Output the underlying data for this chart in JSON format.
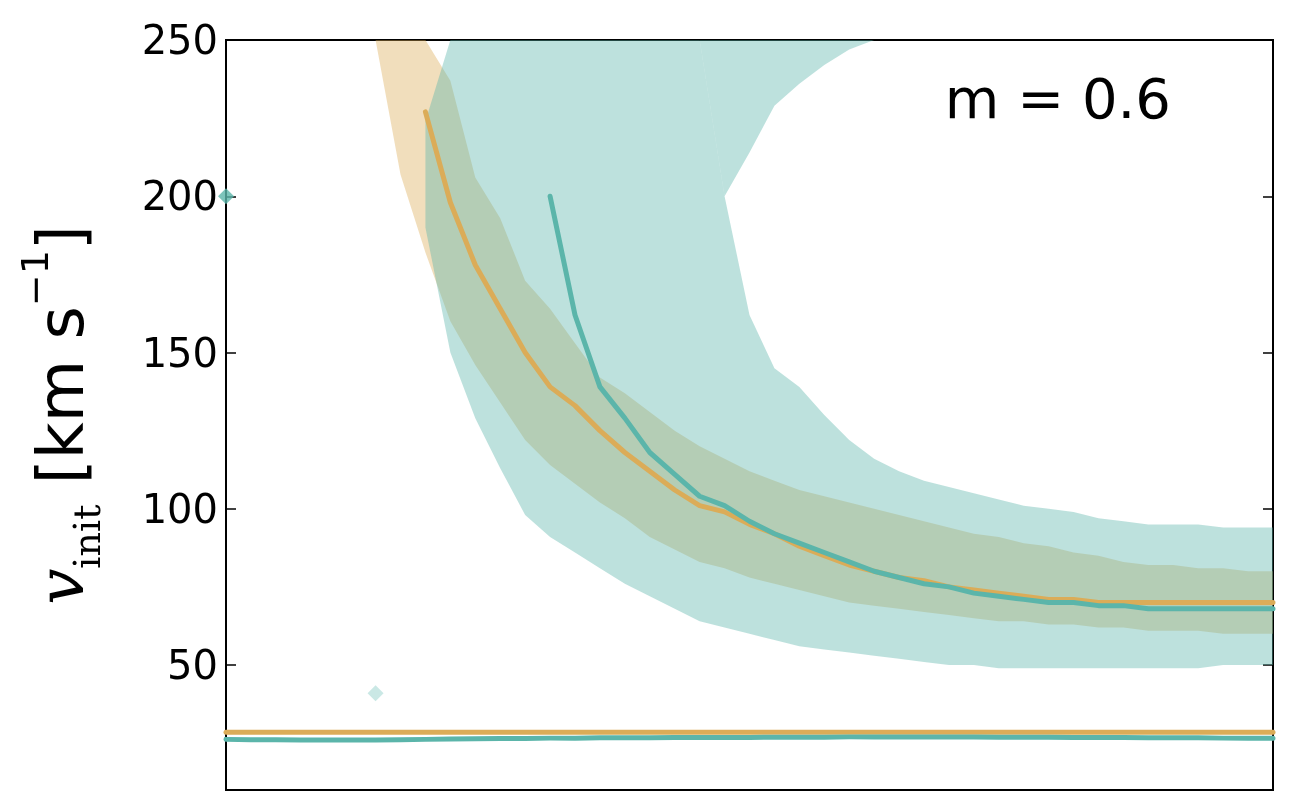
{
  "chart_data": {
    "type": "line",
    "ylabel": "v$_{init}$ [km s$^{−1}$]",
    "annotations": [
      "m = 0.6"
    ],
    "categories": [
      null,
      null,
      null,
      null,
      null,
      null,
      null,
      null,
      null,
      null,
      null,
      null,
      null,
      null,
      null,
      null,
      null,
      null,
      null,
      null,
      null,
      null,
      null,
      null,
      null,
      null,
      null,
      null,
      null,
      null,
      null,
      null,
      null,
      null,
      null,
      null,
      null,
      null,
      null,
      null,
      null,
      null,
      null
    ],
    "ylim": [
      10,
      250
    ],
    "yticks": [
      50,
      100,
      150,
      200,
      250
    ],
    "tick_labels": "y",
    "grid": false,
    "marker": "none",
    "line_style": "solid",
    "series": [
      {
        "color": "#dbac58",
        "values": [
          null,
          null,
          null,
          null,
          null,
          null,
          null,
          null,
          227,
          198,
          178,
          164,
          150,
          139,
          133,
          125,
          118,
          112,
          106,
          101,
          99,
          95,
          92,
          88,
          85,
          82,
          80,
          78,
          77,
          75,
          74,
          73,
          72,
          71,
          71,
          70,
          70,
          70,
          70,
          70,
          70,
          70,
          70
        ],
        "lower": [
          null,
          null,
          null,
          null,
          null,
          null,
          250,
          207,
          182,
          160,
          146,
          134,
          122,
          114,
          108,
          102,
          97,
          91,
          87,
          83,
          81,
          78,
          76,
          74,
          72,
          70,
          69,
          68,
          67,
          66,
          65,
          64,
          64,
          63,
          63,
          62,
          62,
          61,
          61,
          61,
          60,
          60,
          60
        ],
        "upper": [
          null,
          null,
          null,
          null,
          null,
          null,
          250,
          250,
          250,
          237,
          206,
          193,
          173,
          164,
          153,
          142,
          137,
          131,
          125,
          120,
          116,
          112,
          109,
          106,
          104,
          102,
          100,
          98,
          96,
          94,
          92,
          91,
          89,
          88,
          86,
          85,
          83,
          82,
          82,
          81,
          81,
          80,
          80
        ]
      },
      {
        "color": "#5bb5aa",
        "values": [
          null,
          null,
          null,
          null,
          null,
          null,
          null,
          null,
          null,
          null,
          null,
          null,
          null,
          200,
          162,
          139,
          129,
          118,
          111,
          104,
          101,
          96,
          92,
          89,
          86,
          83,
          80,
          78,
          76,
          75,
          73,
          72,
          71,
          70,
          70,
          69,
          69,
          68,
          68,
          68,
          68,
          68,
          68
        ],
        "lower": [
          null,
          null,
          null,
          null,
          null,
          null,
          null,
          null,
          190,
          150,
          129,
          113,
          98,
          91,
          86,
          81,
          76,
          72,
          68,
          64,
          62,
          60,
          58,
          56,
          55,
          54,
          53,
          52,
          51,
          50,
          50,
          49,
          49,
          49,
          49,
          49,
          49,
          49,
          49,
          49,
          50,
          50,
          50
        ],
        "upper": [
          null,
          null,
          null,
          null,
          null,
          null,
          null,
          null,
          224,
          250,
          250,
          250,
          250,
          250,
          250,
          250,
          250,
          250,
          250,
          250,
          200,
          162,
          145,
          139,
          130,
          122,
          116,
          112,
          109,
          107,
          105,
          103,
          101,
          100,
          99,
          97,
          96,
          95,
          95,
          95,
          94,
          94,
          94
        ]
      },
      {
        "color": "#5bb5aa",
        "values": [
          null,
          null,
          null,
          null,
          null,
          null,
          null,
          null,
          null,
          null,
          null,
          null,
          null,
          null,
          null,
          null,
          null,
          null,
          null,
          null,
          null,
          null,
          null,
          null,
          null,
          null,
          null,
          null,
          null,
          null,
          null,
          null,
          null,
          null,
          null,
          null,
          null,
          null,
          null,
          null,
          null,
          null,
          null
        ],
        "lower": [
          null,
          null,
          null,
          null,
          null,
          null,
          null,
          null,
          null,
          null,
          null,
          null,
          null,
          null,
          null,
          null,
          null,
          null,
          null,
          250,
          200,
          214,
          229,
          236,
          242,
          247,
          250,
          null,
          null,
          null,
          null,
          null,
          null,
          null,
          null,
          null,
          null,
          null,
          null,
          null,
          null,
          null,
          null
        ],
        "upper": [
          null,
          null,
          null,
          null,
          null,
          null,
          null,
          null,
          null,
          null,
          null,
          null,
          null,
          null,
          null,
          null,
          null,
          null,
          null,
          250,
          250,
          250,
          250,
          250,
          250,
          250,
          250,
          null,
          null,
          null,
          null,
          null,
          null,
          null,
          null,
          null,
          null,
          null,
          null,
          null,
          null,
          null,
          null
        ]
      },
      {
        "color": "#dbac58",
        "values": [
          28.5,
          28.5,
          28.5,
          28.5,
          28.5,
          28.5,
          28.5,
          28.5,
          28.5,
          28.5,
          28.5,
          28.5,
          28.5,
          28.5,
          28.5,
          28.5,
          28.5,
          28.5,
          28.5,
          28.5,
          28.5,
          28.5,
          28.5,
          28.5,
          28.5,
          28.5,
          28.5,
          28.5,
          28.5,
          28.5,
          28.5,
          28.5,
          28.5,
          28.5,
          28.5,
          28.5,
          28.5,
          28.5,
          28.5,
          28.5,
          28.5,
          28.5,
          28.5
        ]
      },
      {
        "color": "#5bb5aa",
        "values": [
          26.2,
          26.1,
          26.1,
          26,
          26,
          26,
          26,
          26.1,
          26.2,
          26.3,
          26.4,
          26.5,
          26.5,
          26.6,
          26.6,
          26.7,
          26.7,
          26.7,
          26.8,
          26.8,
          26.8,
          26.8,
          26.9,
          26.9,
          26.9,
          27,
          27,
          27,
          27,
          27,
          27,
          26.9,
          26.9,
          26.9,
          26.8,
          26.8,
          26.8,
          26.7,
          26.7,
          26.7,
          26.6,
          26.6,
          26.6
        ]
      },
      {
        "type": "scatter",
        "marker": "diamond",
        "color": "#5bb5aa",
        "values": [
          200,
          null,
          null,
          null,
          null,
          null,
          null,
          null,
          null,
          null,
          null,
          null,
          null,
          null,
          null,
          null,
          null,
          null,
          null,
          null,
          null,
          null,
          null,
          null,
          null,
          null,
          null,
          null,
          null,
          null,
          null,
          null,
          null,
          null,
          null,
          null,
          null,
          null,
          null,
          null,
          null,
          null,
          null
        ]
      },
      {
        "type": "scatter",
        "marker": "diamond",
        "color": "#bde2de",
        "values": [
          null,
          null,
          null,
          null,
          null,
          null,
          41,
          null,
          null,
          null,
          null,
          null,
          null,
          null,
          null,
          null,
          null,
          null,
          null,
          null,
          null,
          null,
          null,
          null,
          null,
          null,
          null,
          null,
          null,
          null,
          null,
          null,
          null,
          null,
          null,
          null,
          null,
          null,
          null,
          null,
          null,
          null,
          null
        ]
      }
    ]
  }
}
